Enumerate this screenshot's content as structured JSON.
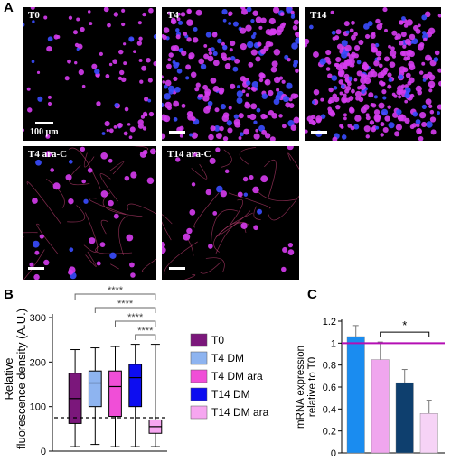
{
  "panel_letters": {
    "a": "A",
    "b": "B",
    "c": "C"
  },
  "micrographs": [
    {
      "label": "T0",
      "cells": 90,
      "density": "sparse",
      "scale": "100 µm"
    },
    {
      "label": "T4",
      "cells": 260,
      "density": "dense"
    },
    {
      "label": "T14",
      "cells": 330,
      "density": "clustered"
    },
    {
      "label": "T4 ara-C",
      "cells": 40,
      "density": "sparse-neurite"
    },
    {
      "label": "T14 ara-C",
      "cells": 30,
      "density": "sparse-neurite"
    }
  ],
  "colors": {
    "magenta": "#d63cf0",
    "blue": "#3a4cff",
    "neurite": "#b23a6a"
  },
  "chart_data": [
    {
      "type": "box",
      "ylabel": "Relative fluorescence density (A.U.)",
      "ylim": [
        0,
        300
      ],
      "yticks": [
        0,
        100,
        200,
        300
      ],
      "reference_line": 75,
      "series": [
        {
          "name": "T0",
          "color": "#7b177b",
          "min": 10,
          "q1": 62,
          "median": 118,
          "q3": 175,
          "max": 228
        },
        {
          "name": "T4 DM",
          "color": "#8eb4f0",
          "min": 15,
          "q1": 100,
          "median": 153,
          "q3": 180,
          "max": 232
        },
        {
          "name": "T4 DM ara",
          "color": "#f04ed7",
          "min": 10,
          "q1": 78,
          "median": 145,
          "q3": 180,
          "max": 235
        },
        {
          "name": "T14 DM",
          "color": "#0d0df0",
          "min": 10,
          "q1": 100,
          "median": 165,
          "q3": 195,
          "max": 240
        },
        {
          "name": "T14 DM ara",
          "color": "#f6a6f0",
          "min": 10,
          "q1": 40,
          "median": 55,
          "q3": 70,
          "max": 240
        }
      ],
      "significance": [
        "****",
        "****",
        "****",
        "****"
      ],
      "legend_position": "right"
    },
    {
      "type": "bar",
      "ylabel": "mRNA expression relative to T0",
      "ylim": [
        0,
        1.2
      ],
      "yticks": [
        "0",
        "0.2",
        "0.4",
        "0.6",
        "0.8",
        "1",
        "1.2"
      ],
      "reference_line": 1.0,
      "reference_color": "#b40fb4",
      "values": [
        1.06,
        0.85,
        0.64,
        0.36
      ],
      "errors": [
        0.1,
        0.16,
        0.12,
        0.12
      ],
      "colors": [
        "#1a8cf0",
        "#f0a6ee",
        "#0e3f6e",
        "#f6d3f6"
      ],
      "significance": "*"
    }
  ]
}
